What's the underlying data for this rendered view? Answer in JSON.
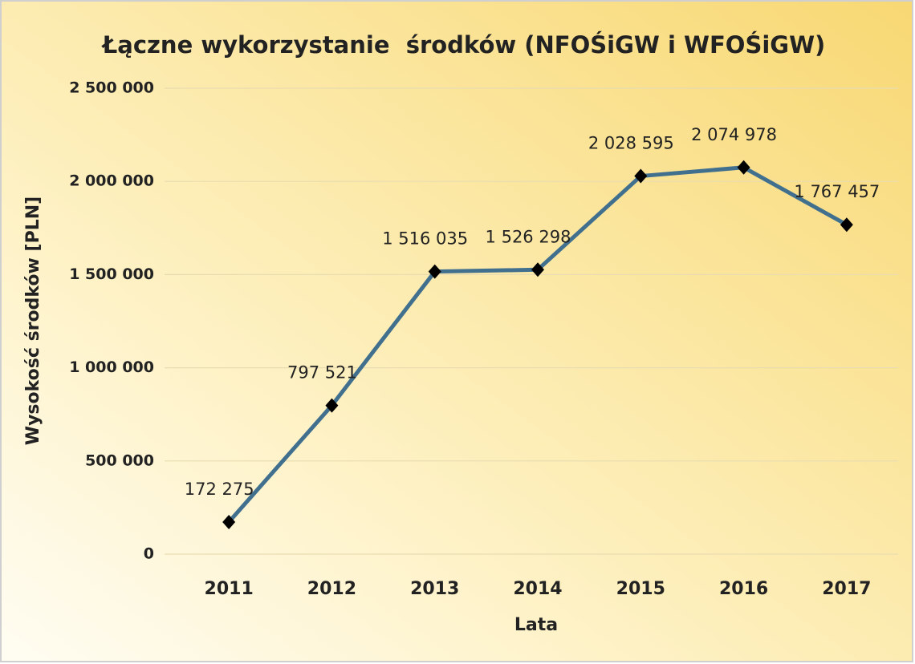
{
  "chart_data": {
    "type": "line",
    "title": "Łączne wykorzystanie  środków (NFOŚiGW i WFOŚiGW)",
    "x_label": "Lata",
    "y_label": "Wysokość środków [PLN]",
    "categories": [
      "2011",
      "2012",
      "2013",
      "2014",
      "2015",
      "2016",
      "2017"
    ],
    "values": [
      172275,
      797521,
      1516035,
      1526298,
      2028595,
      2074978,
      1767457
    ],
    "value_labels": [
      "172 275",
      "797 521",
      "1 516 035",
      "1 526 298",
      "2 028 595",
      "2 074 978",
      "1 767 457"
    ],
    "color": "#41708f",
    "marker_color": "#000000",
    "ylim": [
      0,
      2500000
    ],
    "yticks": [
      0,
      {
        "value": 500000,
        "label": "500 000"
      },
      {
        "value": 1000000,
        "label": "1 000 000"
      },
      {
        "value": 1500000,
        "label": "1 500 000"
      },
      {
        "value": 2000000,
        "label": "2 000 000"
      },
      {
        "value": 2500000,
        "label": "2 500 000"
      }
    ],
    "grid": true
  }
}
